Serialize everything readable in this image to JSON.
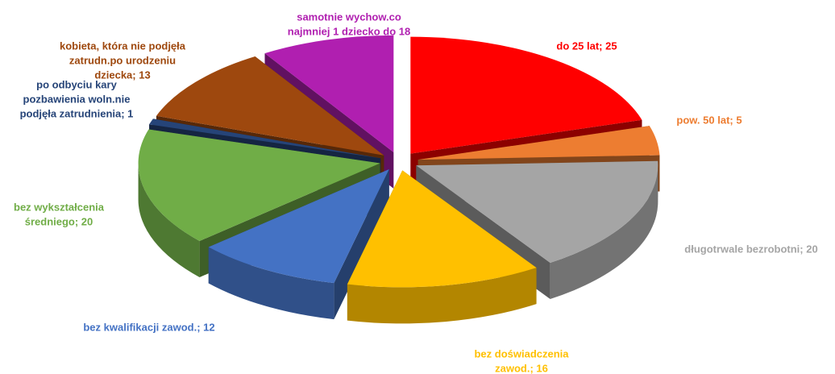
{
  "chart_data": {
    "type": "pie3d",
    "categories": [
      "do 25 lat",
      "pow. 50 lat",
      "długotrwale bezrobotni",
      "bez doświadczenia zawod.",
      "bez kwalifikacji zawod.",
      "bez wykształcenia średniego",
      "po odbyciu kary pozbawienia woln.nie podjęła zatrudnienia",
      "kobieta, która nie podjęła zatrudn.po urodzeniu dziecka",
      "samotnie wychow.co najmniej 1 dziecko do 18"
    ],
    "values": [
      25,
      5,
      20,
      16,
      12,
      20,
      1,
      13,
      11
    ],
    "value_labels": [
      [
        "do 25 lat; 25"
      ],
      [
        "pow. 50 lat; 5"
      ],
      [
        "długotrwale bezrobotni; 20"
      ],
      [
        "bez doświadczenia",
        "zawod.; 16"
      ],
      [
        "bez kwalifikacji zawod.; 12"
      ],
      [
        "bez wykształcenia",
        "średniego; 20"
      ],
      [
        "po odbyciu kary",
        "pozbawienia woln.nie",
        "podjęła zatrudnienia; 1"
      ],
      [
        "kobieta, która nie podjęła",
        "zatrudn.po urodzeniu",
        "dziecka; 13"
      ],
      [
        "samotnie wychow.co",
        "najmniej 1 dziecko do 18"
      ]
    ],
    "colors": [
      "#ff0000",
      "#ed7d31",
      "#a5a5a5",
      "#ffc000",
      "#4472c4",
      "#70ad47",
      "#264478",
      "#9e480e",
      "#b01fb0"
    ]
  }
}
